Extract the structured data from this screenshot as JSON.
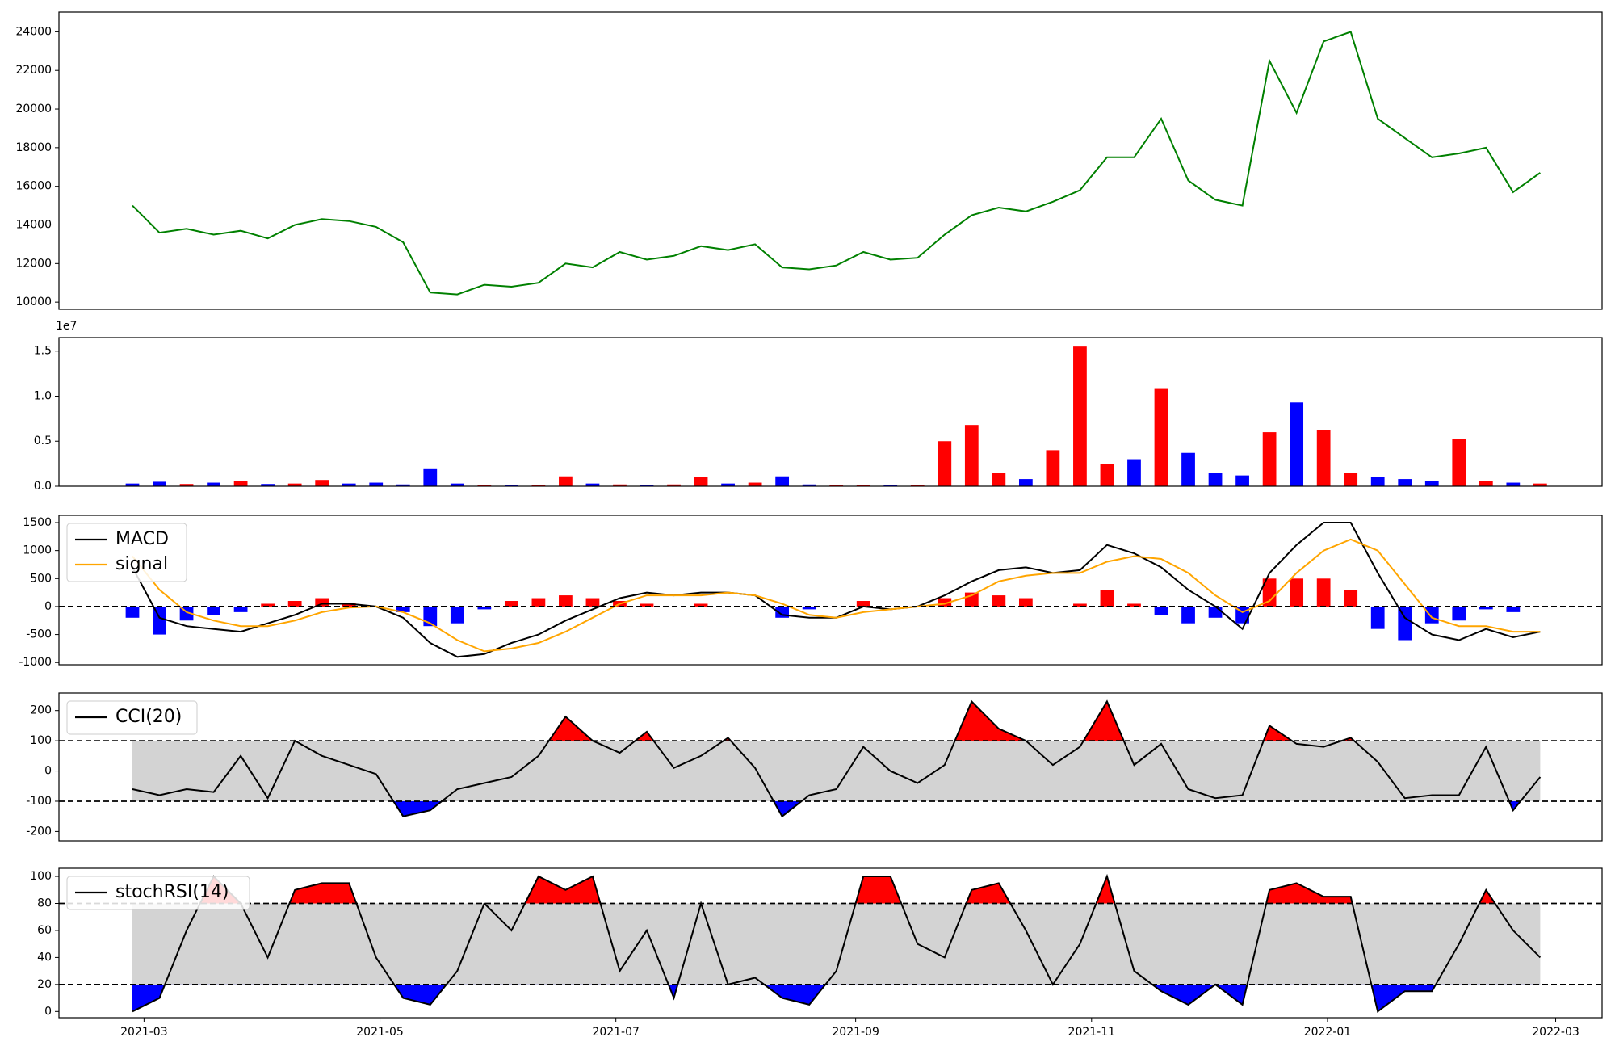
{
  "chart_data": [
    {
      "type": "line",
      "xlim": [
        "2021-02-07",
        "2022-03-13"
      ],
      "ylim": [
        9630,
        25020
      ],
      "yticks": [
        10000,
        12000,
        14000,
        16000,
        18000,
        20000,
        22000,
        24000
      ],
      "x": [
        "2021-02-26",
        "2021-03-05",
        "2021-03-12",
        "2021-03-19",
        "2021-03-26",
        "2021-04-02",
        "2021-04-09",
        "2021-04-16",
        "2021-04-23",
        "2021-04-30",
        "2021-05-07",
        "2021-05-14",
        "2021-05-21",
        "2021-05-28",
        "2021-06-04",
        "2021-06-11",
        "2021-06-18",
        "2021-06-25",
        "2021-07-02",
        "2021-07-09",
        "2021-07-16",
        "2021-07-23",
        "2021-07-30",
        "2021-08-06",
        "2021-08-13",
        "2021-08-20",
        "2021-08-27",
        "2021-09-03",
        "2021-09-10",
        "2021-09-17",
        "2021-09-24",
        "2021-10-01",
        "2021-10-08",
        "2021-10-15",
        "2021-10-22",
        "2021-10-29",
        "2021-11-05",
        "2021-11-12",
        "2021-11-19",
        "2021-11-26",
        "2021-12-03",
        "2021-12-10",
        "2021-12-17",
        "2021-12-24",
        "2021-12-31",
        "2022-01-07",
        "2022-01-14",
        "2022-01-21",
        "2022-01-28",
        "2022-02-04",
        "2022-02-11",
        "2022-02-18",
        "2022-02-25"
      ],
      "series": [
        {
          "color": "#008000",
          "values": [
            15000,
            13600,
            13800,
            13500,
            13700,
            13300,
            14000,
            14300,
            14200,
            13900,
            13100,
            10500,
            10400,
            10900,
            10800,
            11000,
            12000,
            11800,
            12600,
            12200,
            12400,
            12900,
            12700,
            13000,
            11800,
            11700,
            11900,
            12600,
            12200,
            12300,
            13500,
            14500,
            14900,
            14700,
            15200,
            15800,
            17500,
            17500,
            19500,
            16300,
            15300,
            15000,
            22500,
            19800,
            23500,
            24000,
            19500,
            18500,
            17500,
            17700,
            18000,
            15700,
            16700
          ]
        }
      ]
    },
    {
      "type": "bar",
      "xlim": [
        "2021-02-07",
        "2022-03-13"
      ],
      "ylim": [
        0,
        16500000
      ],
      "offset_text": "1e7",
      "yticks": [
        {
          "value": 0,
          "label": "0.0"
        },
        {
          "value": 5000000,
          "label": "0.5"
        },
        {
          "value": 10000000,
          "label": "1.0"
        },
        {
          "value": 15000000,
          "label": "1.5"
        }
      ],
      "up_color": "#ff0000",
      "down_color": "#0000ff",
      "x": [
        "2021-02-26",
        "2021-03-05",
        "2021-03-12",
        "2021-03-19",
        "2021-03-26",
        "2021-04-02",
        "2021-04-09",
        "2021-04-16",
        "2021-04-23",
        "2021-04-30",
        "2021-05-07",
        "2021-05-14",
        "2021-05-21",
        "2021-05-28",
        "2021-06-04",
        "2021-06-11",
        "2021-06-18",
        "2021-06-25",
        "2021-07-02",
        "2021-07-09",
        "2021-07-16",
        "2021-07-23",
        "2021-07-30",
        "2021-08-06",
        "2021-08-13",
        "2021-08-20",
        "2021-08-27",
        "2021-09-03",
        "2021-09-10",
        "2021-09-17",
        "2021-09-24",
        "2021-10-01",
        "2021-10-08",
        "2021-10-15",
        "2021-10-22",
        "2021-10-29",
        "2021-11-05",
        "2021-11-12",
        "2021-11-19",
        "2021-11-26",
        "2021-12-03",
        "2021-12-10",
        "2021-12-17",
        "2021-12-24",
        "2021-12-31",
        "2022-01-07",
        "2022-01-14",
        "2022-01-21",
        "2022-01-28",
        "2022-02-04",
        "2022-02-11",
        "2022-02-18",
        "2022-02-25"
      ],
      "values": [
        300000,
        500000,
        250000,
        400000,
        600000,
        250000,
        300000,
        700000,
        300000,
        400000,
        200000,
        1900000,
        300000,
        150000,
        100000,
        150000,
        1100000,
        300000,
        200000,
        150000,
        200000,
        1000000,
        300000,
        400000,
        1100000,
        200000,
        150000,
        150000,
        100000,
        100000,
        5000000,
        6800000,
        1500000,
        800000,
        4000000,
        15500000,
        2500000,
        3000000,
        10800000,
        3700000,
        1500000,
        1200000,
        6000000,
        9300000,
        6200000,
        1500000,
        1000000,
        800000,
        600000,
        5200000,
        600000,
        400000,
        300000
      ]
    },
    {
      "type": "macd",
      "xlim": [
        "2021-02-07",
        "2022-03-13"
      ],
      "ylim": [
        -1040,
        1630
      ],
      "yticks": [
        -1000,
        -500,
        0,
        500,
        1000,
        1500
      ],
      "hlines": [
        0
      ],
      "up_color": "#ff0000",
      "down_color": "#0000ff",
      "x": [
        "2021-02-26",
        "2021-03-05",
        "2021-03-12",
        "2021-03-19",
        "2021-03-26",
        "2021-04-02",
        "2021-04-09",
        "2021-04-16",
        "2021-04-23",
        "2021-04-30",
        "2021-05-07",
        "2021-05-14",
        "2021-05-21",
        "2021-05-28",
        "2021-06-04",
        "2021-06-11",
        "2021-06-18",
        "2021-06-25",
        "2021-07-02",
        "2021-07-09",
        "2021-07-16",
        "2021-07-23",
        "2021-07-30",
        "2021-08-06",
        "2021-08-13",
        "2021-08-20",
        "2021-08-27",
        "2021-09-03",
        "2021-09-10",
        "2021-09-17",
        "2021-09-24",
        "2021-10-01",
        "2021-10-08",
        "2021-10-15",
        "2021-10-22",
        "2021-10-29",
        "2021-11-05",
        "2021-11-12",
        "2021-11-19",
        "2021-11-26",
        "2021-12-03",
        "2021-12-10",
        "2021-12-17",
        "2021-12-24",
        "2021-12-31",
        "2022-01-07",
        "2022-01-14",
        "2022-01-21",
        "2022-01-28",
        "2022-02-04",
        "2022-02-11",
        "2022-02-18",
        "2022-02-25"
      ],
      "histogram": [
        -200,
        -500,
        -250,
        -150,
        -100,
        50,
        100,
        150,
        70,
        0,
        -100,
        -350,
        -300,
        -50,
        100,
        150,
        200,
        150,
        100,
        50,
        0,
        50,
        0,
        0,
        -200,
        -50,
        0,
        100,
        0,
        0,
        150,
        250,
        200,
        150,
        0,
        50,
        300,
        50,
        -150,
        -300,
        -200,
        -300,
        500,
        500,
        500,
        300,
        -400,
        -600,
        -300,
        -250,
        -50,
        -100,
        0
      ],
      "series": [
        {
          "name": "MACD",
          "color": "#000000",
          "values": [
            700,
            -200,
            -350,
            -400,
            -450,
            -300,
            -150,
            50,
            50,
            0,
            -200,
            -650,
            -900,
            -850,
            -650,
            -500,
            -250,
            -50,
            150,
            250,
            200,
            250,
            250,
            200,
            -150,
            -200,
            -200,
            0,
            -50,
            0,
            200,
            450,
            650,
            700,
            600,
            650,
            1100,
            950,
            700,
            300,
            0,
            -400,
            600,
            1100,
            1500,
            1500,
            600,
            -200,
            -500,
            -600,
            -400,
            -550,
            -450
          ]
        },
        {
          "name": "signal",
          "color": "#ffa500",
          "values": [
            900,
            300,
            -100,
            -250,
            -350,
            -350,
            -250,
            -100,
            -20,
            0,
            -100,
            -300,
            -600,
            -800,
            -750,
            -650,
            -450,
            -200,
            50,
            200,
            200,
            200,
            250,
            200,
            50,
            -150,
            -200,
            -100,
            -50,
            0,
            50,
            200,
            450,
            550,
            600,
            600,
            800,
            900,
            850,
            600,
            200,
            -100,
            100,
            600,
            1000,
            1200,
            1000,
            400,
            -200,
            -350,
            -350,
            -450,
            -450
          ]
        }
      ]
    },
    {
      "type": "oscillator",
      "xlim": [
        "2021-02-07",
        "2022-03-13"
      ],
      "ylim": [
        -231,
        258
      ],
      "yticks": [
        -200,
        -100,
        0,
        100,
        200
      ],
      "levels": [
        -100,
        100
      ],
      "band_color": "#d3d3d3",
      "high_color": "#ff0000",
      "low_color": "#0000ff",
      "x": [
        "2021-02-26",
        "2021-03-05",
        "2021-03-12",
        "2021-03-19",
        "2021-03-26",
        "2021-04-02",
        "2021-04-09",
        "2021-04-16",
        "2021-04-23",
        "2021-04-30",
        "2021-05-07",
        "2021-05-14",
        "2021-05-21",
        "2021-05-28",
        "2021-06-04",
        "2021-06-11",
        "2021-06-18",
        "2021-06-25",
        "2021-07-02",
        "2021-07-09",
        "2021-07-16",
        "2021-07-23",
        "2021-07-30",
        "2021-08-06",
        "2021-08-13",
        "2021-08-20",
        "2021-08-27",
        "2021-09-03",
        "2021-09-10",
        "2021-09-17",
        "2021-09-24",
        "2021-10-01",
        "2021-10-08",
        "2021-10-15",
        "2021-10-22",
        "2021-10-29",
        "2021-11-05",
        "2021-11-12",
        "2021-11-19",
        "2021-11-26",
        "2021-12-03",
        "2021-12-10",
        "2021-12-17",
        "2021-12-24",
        "2021-12-31",
        "2022-01-07",
        "2022-01-14",
        "2022-01-21",
        "2022-01-28",
        "2022-02-04",
        "2022-02-11",
        "2022-02-18",
        "2022-02-25"
      ],
      "series": [
        {
          "name": "CCI(20)",
          "color": "#000000",
          "values": [
            -60,
            -80,
            -60,
            -70,
            50,
            -90,
            100,
            50,
            20,
            -10,
            -150,
            -130,
            -60,
            -40,
            -20,
            50,
            180,
            100,
            60,
            130,
            10,
            50,
            110,
            10,
            -150,
            -80,
            -60,
            80,
            0,
            -40,
            20,
            230,
            140,
            100,
            20,
            80,
            230,
            20,
            90,
            -60,
            -90,
            -80,
            150,
            90,
            80,
            110,
            30,
            -90,
            -80,
            -80,
            80,
            -130,
            -20
          ]
        }
      ]
    },
    {
      "type": "oscillator",
      "xlim": [
        "2021-02-07",
        "2022-03-13"
      ],
      "ylim": [
        -4.6,
        106
      ],
      "yticks": [
        0,
        20,
        40,
        60,
        80,
        100
      ],
      "levels": [
        20,
        80
      ],
      "band_color": "#d3d3d3",
      "high_color": "#ff0000",
      "low_color": "#0000ff",
      "xticks": [
        {
          "value": "2021-03-01",
          "label": "2021-03"
        },
        {
          "value": "2021-05-01",
          "label": "2021-05"
        },
        {
          "value": "2021-07-01",
          "label": "2021-07"
        },
        {
          "value": "2021-09-01",
          "label": "2021-09"
        },
        {
          "value": "2021-11-01",
          "label": "2021-11"
        },
        {
          "value": "2022-01-01",
          "label": "2022-01"
        },
        {
          "value": "2022-03-01",
          "label": "2022-03"
        }
      ],
      "x": [
        "2021-02-26",
        "2021-03-05",
        "2021-03-12",
        "2021-03-19",
        "2021-03-26",
        "2021-04-02",
        "2021-04-09",
        "2021-04-16",
        "2021-04-23",
        "2021-04-30",
        "2021-05-07",
        "2021-05-14",
        "2021-05-21",
        "2021-05-28",
        "2021-06-04",
        "2021-06-11",
        "2021-06-18",
        "2021-06-25",
        "2021-07-02",
        "2021-07-09",
        "2021-07-16",
        "2021-07-23",
        "2021-07-30",
        "2021-08-06",
        "2021-08-13",
        "2021-08-20",
        "2021-08-27",
        "2021-09-03",
        "2021-09-10",
        "2021-09-17",
        "2021-09-24",
        "2021-10-01",
        "2021-10-08",
        "2021-10-15",
        "2021-10-22",
        "2021-10-29",
        "2021-11-05",
        "2021-11-12",
        "2021-11-19",
        "2021-11-26",
        "2021-12-03",
        "2021-12-10",
        "2021-12-17",
        "2021-12-24",
        "2021-12-31",
        "2022-01-07",
        "2022-01-14",
        "2022-01-21",
        "2022-01-28",
        "2022-02-04",
        "2022-02-11",
        "2022-02-18",
        "2022-02-25"
      ],
      "series": [
        {
          "name": "stochRSI(14)",
          "color": "#000000",
          "values": [
            0,
            10,
            60,
            100,
            80,
            40,
            90,
            95,
            95,
            40,
            10,
            5,
            30,
            80,
            60,
            100,
            90,
            100,
            30,
            60,
            10,
            80,
            20,
            25,
            10,
            5,
            30,
            100,
            100,
            50,
            40,
            90,
            95,
            60,
            20,
            50,
            100,
            30,
            15,
            5,
            20,
            5,
            90,
            95,
            85,
            85,
            0,
            15,
            15,
            50,
            90,
            60,
            40
          ]
        }
      ]
    }
  ]
}
